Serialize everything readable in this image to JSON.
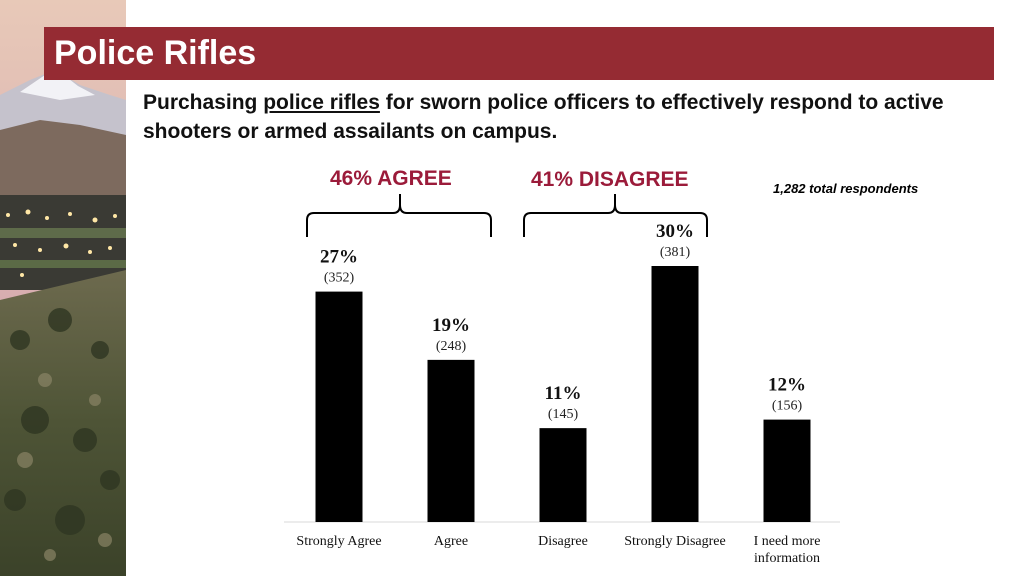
{
  "slide": {
    "title": "Police Rifles",
    "subtitle_prefix": "Purchasing ",
    "subtitle_underlined": "police rifles",
    "subtitle_suffix": " for sworn police officers to effectively respond to active shooters or armed assailants on campus.",
    "agree_label": "46% AGREE",
    "disagree_label": "41% DISAGREE",
    "respondents": "1,282 total respondents"
  },
  "colors": {
    "title_bar": "#952b33",
    "group_label": "#9b1b3a",
    "bar": "#000000"
  },
  "chart_data": {
    "type": "bar",
    "title": "Police Rifles",
    "categories": [
      "Strongly Agree",
      "Agree",
      "Disagree",
      "Strongly Disagree",
      "I need more information"
    ],
    "category_lines": [
      [
        "Strongly Agree"
      ],
      [
        "Agree"
      ],
      [
        "Disagree"
      ],
      [
        "Strongly Disagree"
      ],
      [
        "I need more",
        "information"
      ]
    ],
    "values": [
      27,
      19,
      11,
      30,
      12
    ],
    "value_labels": [
      "27%",
      "19%",
      "11%",
      "30%",
      "12%"
    ],
    "counts": [
      352,
      248,
      145,
      381,
      156
    ],
    "count_labels": [
      "(352)",
      "(248)",
      "(145)",
      "(381)",
      "(156)"
    ],
    "ylim": [
      0,
      30
    ],
    "xlabel": "",
    "ylabel": "",
    "grid": false
  }
}
